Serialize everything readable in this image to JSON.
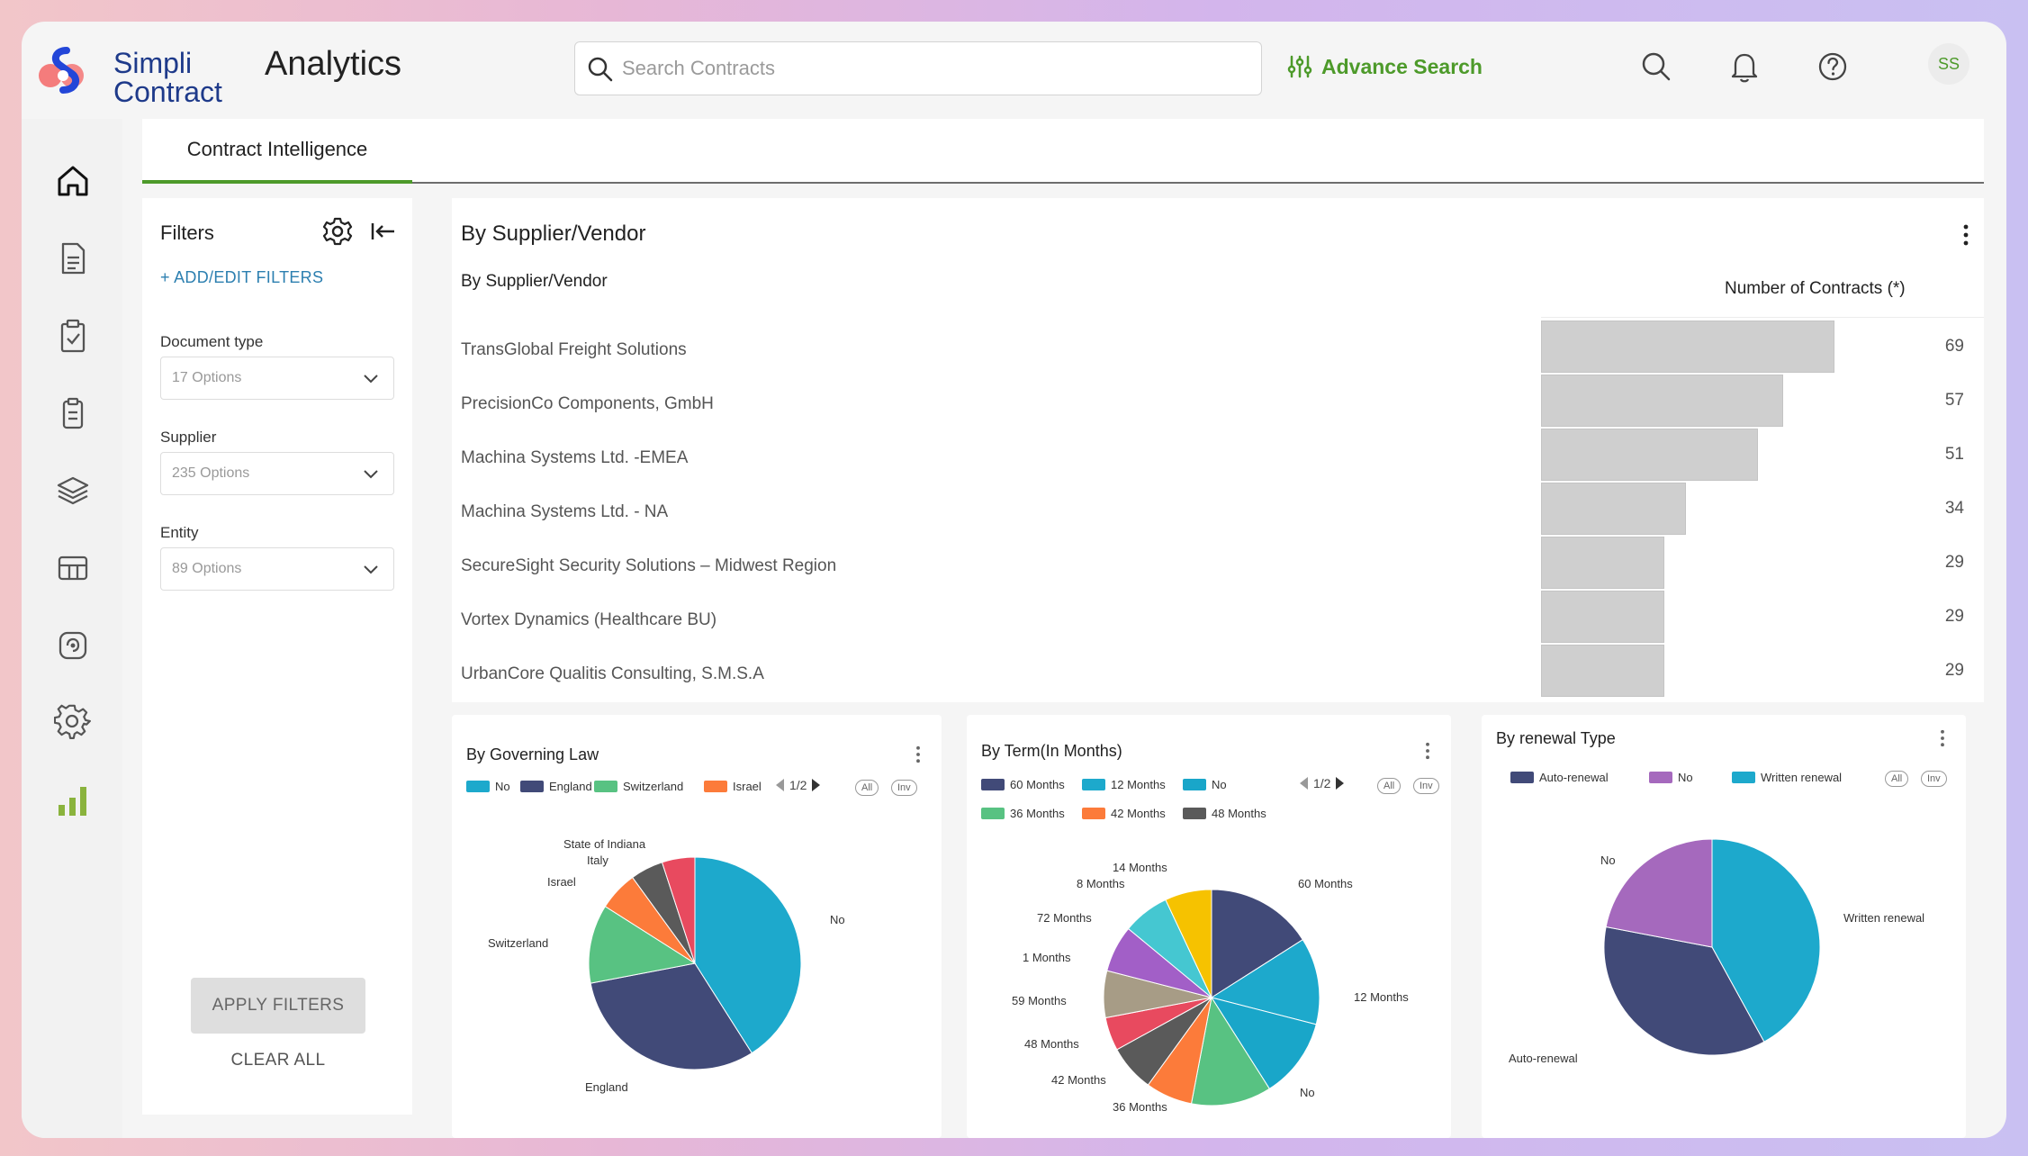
{
  "header": {
    "logo_line1": "Simpli",
    "logo_line2": "Contract",
    "title": "Analytics",
    "search_placeholder": "Search Contracts",
    "advance_search": "Advance Search",
    "avatar_initials": "SS"
  },
  "tabs": [
    {
      "label": "Contract Intelligence",
      "active": true
    }
  ],
  "filters": {
    "title": "Filters",
    "add_edit": "+ ADD/EDIT FILTERS",
    "fields": [
      {
        "label": "Document type",
        "value": "17 Options"
      },
      {
        "label": "Supplier",
        "value": "235 Options"
      },
      {
        "label": "Entity",
        "value": "89 Options"
      }
    ],
    "apply": "APPLY FILTERS",
    "clear": "CLEAR ALL"
  },
  "supplier_card": {
    "title": "By Supplier/Vendor",
    "column_header": "By Supplier/Vendor",
    "bar_header": "Number of Contracts (*)"
  },
  "colors": {
    "brand_green": "#4d9a2a",
    "bar_gray": "#cfcfcf",
    "link_blue": "#2c7fb0"
  },
  "chart_data": [
    {
      "type": "bar",
      "orientation": "horizontal",
      "title": "By Supplier/Vendor",
      "xlabel": "Number of Contracts (*)",
      "categories": [
        "TransGlobal Freight Solutions",
        "PrecisionCo Components, GmbH",
        "Machina Systems Ltd. -EMEA",
        "Machina Systems Ltd. - NA",
        "SecureSight Security Solutions – Midwest Region",
        "Vortex Dynamics (Healthcare BU)",
        "UrbanCore Qualitis Consulting, S.M.S.A"
      ],
      "values": [
        69,
        57,
        51,
        34,
        29,
        29,
        29
      ]
    },
    {
      "type": "pie",
      "title": "By Governing Law",
      "legend": [
        {
          "name": "No",
          "color": "#1da9cc"
        },
        {
          "name": "England",
          "color": "#414a78"
        },
        {
          "name": "Switzerland",
          "color": "#58c282"
        },
        {
          "name": "Israel",
          "color": "#fc7b3a"
        }
      ],
      "pager": "1/2",
      "buttons": [
        "All",
        "Inv"
      ],
      "slices": [
        {
          "label": "No",
          "value": 41,
          "color": "#1da9cc"
        },
        {
          "label": "England",
          "value": 31,
          "color": "#414a78"
        },
        {
          "label": "Switzerland",
          "value": 12,
          "color": "#58c282"
        },
        {
          "label": "Israel",
          "value": 6,
          "color": "#fc7b3a"
        },
        {
          "label": "Italy",
          "value": 5,
          "color": "#5a5a5a"
        },
        {
          "label": "State of Indiana",
          "value": 5,
          "color": "#e84a5f"
        }
      ]
    },
    {
      "type": "pie",
      "title": "By Term(In Months)",
      "legend": [
        {
          "name": "60 Months",
          "color": "#414a78"
        },
        {
          "name": "12 Months",
          "color": "#1da9cc"
        },
        {
          "name": "No",
          "color": "#19a6c9"
        },
        {
          "name": "36 Months",
          "color": "#58c282"
        },
        {
          "name": "42 Months",
          "color": "#fc7b3a"
        },
        {
          "name": "48 Months",
          "color": "#5a5a5a"
        }
      ],
      "pager": "1/2",
      "buttons": [
        "All",
        "Inv"
      ],
      "slices": [
        {
          "label": "60 Months",
          "value": 16,
          "color": "#414a78"
        },
        {
          "label": "12 Months",
          "value": 13,
          "color": "#1da9cc"
        },
        {
          "label": "No",
          "value": 12,
          "color": "#19a6c9"
        },
        {
          "label": "36 Months",
          "value": 12,
          "color": "#58c282"
        },
        {
          "label": "42 Months",
          "value": 7,
          "color": "#fc7b3a"
        },
        {
          "label": "48 Months",
          "value": 7,
          "color": "#5a5a5a"
        },
        {
          "label": "59 Months",
          "value": 5,
          "color": "#e84a5f"
        },
        {
          "label": "1 Months",
          "value": 7,
          "color": "#a79c86"
        },
        {
          "label": "72 Months",
          "value": 7,
          "color": "#a25fc7"
        },
        {
          "label": "8 Months",
          "value": 7,
          "color": "#45c7d1"
        },
        {
          "label": "14 Months",
          "value": 7,
          "color": "#f6c200"
        }
      ]
    },
    {
      "type": "pie",
      "title": "By renewal Type",
      "legend": [
        {
          "name": "Auto-renewal",
          "color": "#414a78"
        },
        {
          "name": "No",
          "color": "#a569bd"
        },
        {
          "name": "Written renewal",
          "color": "#1da9cc"
        }
      ],
      "buttons": [
        "All",
        "Inv"
      ],
      "slices": [
        {
          "label": "Written renewal",
          "value": 42,
          "color": "#1da9cc"
        },
        {
          "label": "Auto-renewal",
          "value": 36,
          "color": "#414a78"
        },
        {
          "label": "No",
          "value": 22,
          "color": "#a569bd"
        }
      ]
    }
  ]
}
